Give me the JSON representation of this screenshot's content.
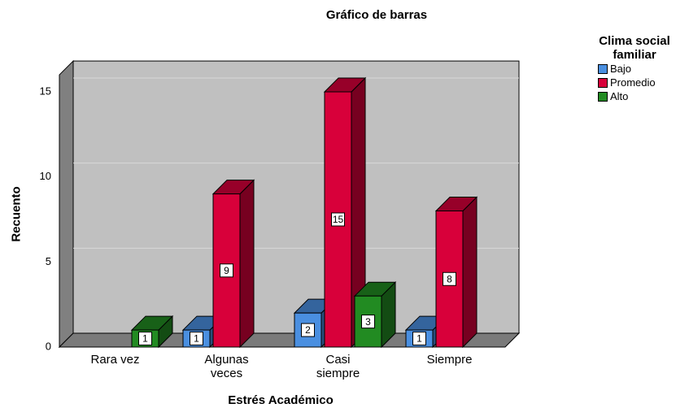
{
  "chart_data": {
    "type": "bar3d",
    "title": "Gráfico de barras",
    "x_label": "Estrés Académico",
    "y_label": "Recuento",
    "categories": [
      "Rara vez",
      "Algunas veces",
      "Casi siempre",
      "Siempre"
    ],
    "legend_title": "Clima social familiar",
    "series": [
      {
        "name": "Bajo",
        "color": "#4a8fe0",
        "values": [
          null,
          1,
          2,
          1
        ]
      },
      {
        "name": "Promedio",
        "color": "#d8003a",
        "values": [
          null,
          9,
          15,
          8
        ]
      },
      {
        "name": "Alto",
        "color": "#228b22",
        "values": [
          1,
          null,
          3,
          null
        ]
      }
    ],
    "ylim": [
      0,
      16
    ],
    "yticks": [
      0,
      5,
      10,
      15
    ],
    "grid": true
  }
}
